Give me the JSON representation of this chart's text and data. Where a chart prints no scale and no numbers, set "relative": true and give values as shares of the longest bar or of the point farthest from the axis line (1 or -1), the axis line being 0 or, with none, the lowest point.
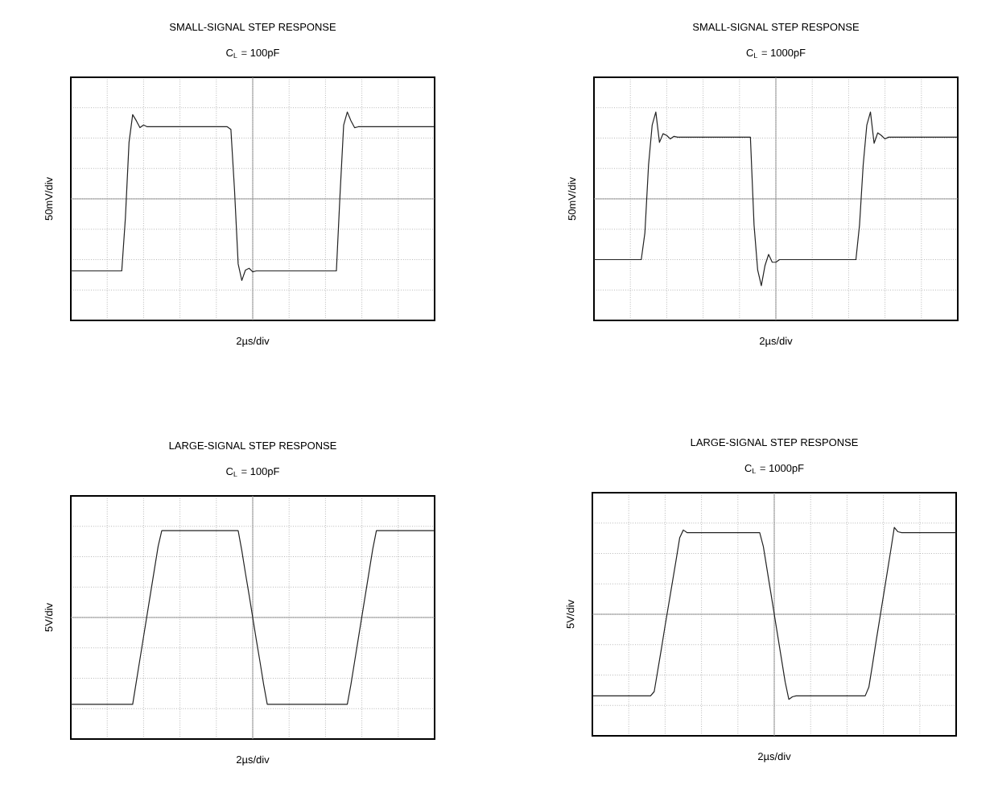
{
  "chart_data": [
    {
      "type": "line",
      "title": "SMALL-SIGNAL STEP RESPONSE",
      "subtitle": "C$_{L}$ = 100pF",
      "xlabel": "2µs/div",
      "ylabel": "50mV/div",
      "relative": true,
      "grid": true,
      "tick_labels": false,
      "color": "#222222",
      "categories": [
        null,
        null,
        null,
        null,
        null,
        null,
        null,
        null,
        null,
        null,
        null,
        null,
        null,
        null,
        null,
        null,
        null,
        null,
        null,
        null,
        null,
        null,
        null,
        null,
        null,
        null,
        null,
        null,
        null,
        null,
        null,
        null,
        null,
        null,
        null,
        null,
        null,
        null,
        null,
        null,
        null,
        null,
        null,
        null,
        null,
        null,
        null,
        null,
        null,
        null,
        null,
        null,
        null,
        null,
        null,
        null,
        null,
        null,
        null,
        null,
        null,
        null,
        null,
        null,
        null,
        null,
        null,
        null,
        null,
        null,
        null,
        null,
        null,
        null,
        null,
        null,
        null,
        null,
        null,
        null,
        null,
        null,
        null,
        null,
        null,
        null,
        null,
        null,
        null,
        null,
        null,
        null,
        null,
        null,
        null,
        null,
        null,
        null,
        null,
        null,
        null
      ],
      "values": [
        -0.83,
        -0.83,
        -0.83,
        -0.83,
        -0.83,
        -0.83,
        -0.83,
        -0.83,
        -0.83,
        -0.83,
        -0.83,
        -0.83,
        -0.83,
        -0.83,
        -0.83,
        -0.22,
        0.65,
        0.97,
        0.9,
        0.82,
        0.85,
        0.83,
        0.83,
        0.83,
        0.83,
        0.83,
        0.83,
        0.83,
        0.83,
        0.83,
        0.83,
        0.83,
        0.83,
        0.83,
        0.83,
        0.83,
        0.83,
        0.83,
        0.83,
        0.83,
        0.83,
        0.83,
        0.83,
        0.83,
        0.8,
        0.1,
        -0.75,
        -0.94,
        -0.82,
        -0.8,
        -0.84,
        -0.83,
        -0.83,
        -0.83,
        -0.83,
        -0.83,
        -0.83,
        -0.83,
        -0.83,
        -0.83,
        -0.83,
        -0.83,
        -0.83,
        -0.83,
        -0.83,
        -0.83,
        -0.83,
        -0.83,
        -0.83,
        -0.83,
        -0.83,
        -0.83,
        -0.83,
        -0.83,
        0.05,
        0.85,
        1,
        0.9,
        0.82,
        0.83,
        0.83,
        0.83,
        0.83,
        0.83,
        0.83,
        0.83,
        0.83,
        0.83,
        0.83,
        0.83,
        0.83,
        0.83,
        0.83,
        0.83,
        0.83,
        0.83,
        0.83,
        0.83,
        0.83,
        0.83,
        0.83
      ]
    },
    {
      "type": "line",
      "title": "SMALL-SIGNAL STEP RESPONSE",
      "subtitle": "C$_{L}$ = 1000pF",
      "xlabel": "2µs/div",
      "ylabel": "50mV/div",
      "relative": true,
      "grid": true,
      "tick_labels": false,
      "color": "#222222",
      "categories": [
        null,
        null,
        null,
        null,
        null,
        null,
        null,
        null,
        null,
        null,
        null,
        null,
        null,
        null,
        null,
        null,
        null,
        null,
        null,
        null,
        null,
        null,
        null,
        null,
        null,
        null,
        null,
        null,
        null,
        null,
        null,
        null,
        null,
        null,
        null,
        null,
        null,
        null,
        null,
        null,
        null,
        null,
        null,
        null,
        null,
        null,
        null,
        null,
        null,
        null,
        null,
        null,
        null,
        null,
        null,
        null,
        null,
        null,
        null,
        null,
        null,
        null,
        null,
        null,
        null,
        null,
        null,
        null,
        null,
        null,
        null,
        null,
        null,
        null,
        null,
        null,
        null,
        null,
        null,
        null,
        null,
        null,
        null,
        null,
        null,
        null,
        null,
        null,
        null,
        null,
        null,
        null,
        null,
        null,
        null,
        null,
        null,
        null,
        null,
        null,
        null
      ],
      "values": [
        -0.7,
        -0.7,
        -0.7,
        -0.7,
        -0.7,
        -0.7,
        -0.7,
        -0.7,
        -0.7,
        -0.7,
        -0.7,
        -0.7,
        -0.7,
        -0.7,
        -0.39,
        0.39,
        0.85,
        1,
        0.65,
        0.75,
        0.73,
        0.69,
        0.72,
        0.71,
        0.71,
        0.71,
        0.71,
        0.71,
        0.71,
        0.71,
        0.71,
        0.71,
        0.71,
        0.71,
        0.71,
        0.71,
        0.71,
        0.71,
        0.71,
        0.71,
        0.71,
        0.71,
        0.71,
        0.71,
        -0.3,
        -0.82,
        -1,
        -0.77,
        -0.64,
        -0.73,
        -0.73,
        -0.7,
        -0.7,
        -0.7,
        -0.7,
        -0.7,
        -0.7,
        -0.7,
        -0.7,
        -0.7,
        -0.7,
        -0.7,
        -0.7,
        -0.7,
        -0.7,
        -0.7,
        -0.7,
        -0.7,
        -0.7,
        -0.7,
        -0.7,
        -0.7,
        -0.7,
        -0.3,
        0.39,
        0.85,
        1,
        0.64,
        0.76,
        0.73,
        0.69,
        0.71,
        0.71,
        0.71,
        0.71,
        0.71,
        0.71,
        0.71,
        0.71,
        0.71,
        0.71,
        0.71,
        0.71,
        0.71,
        0.71,
        0.71,
        0.71,
        0.71,
        0.71,
        0.71,
        0.71
      ]
    },
    {
      "type": "line",
      "title": "LARGE-SIGNAL STEP RESPONSE",
      "subtitle": "C$_{L}$ = 100pF",
      "xlabel": "2µs/div",
      "ylabel": "5V/div",
      "relative": true,
      "grid": true,
      "tick_labels": false,
      "color": "#222222",
      "categories": [
        null,
        null,
        null,
        null,
        null,
        null,
        null,
        null,
        null,
        null,
        null,
        null,
        null,
        null,
        null,
        null,
        null,
        null,
        null,
        null,
        null,
        null,
        null,
        null,
        null,
        null,
        null,
        null,
        null,
        null,
        null,
        null,
        null,
        null,
        null,
        null,
        null,
        null,
        null,
        null,
        null,
        null,
        null,
        null,
        null,
        null,
        null,
        null,
        null,
        null,
        null,
        null,
        null,
        null,
        null,
        null,
        null,
        null,
        null,
        null,
        null,
        null,
        null,
        null,
        null,
        null,
        null,
        null,
        null,
        null,
        null,
        null,
        null,
        null,
        null,
        null,
        null,
        null,
        null,
        null,
        null,
        null,
        null,
        null,
        null,
        null,
        null,
        null,
        null,
        null,
        null,
        null,
        null,
        null,
        null,
        null,
        null,
        null,
        null,
        null,
        null
      ],
      "values": [
        -1,
        -1,
        -1,
        -1,
        -1,
        -1,
        -1,
        -1,
        -1,
        -1,
        -1,
        -1,
        -1,
        -1,
        -1,
        -1,
        -1,
        -1,
        -0.74,
        -0.48,
        -0.22,
        0.04,
        0.3,
        0.56,
        0.82,
        1,
        1,
        1,
        1,
        1,
        1,
        1,
        1,
        1,
        1,
        1,
        1,
        1,
        1,
        1,
        1,
        1,
        1,
        1,
        1,
        1,
        1,
        0.77,
        0.51,
        0.26,
        0,
        -0.26,
        -0.51,
        -0.77,
        -1,
        -1,
        -1,
        -1,
        -1,
        -1,
        -1,
        -1,
        -1,
        -1,
        -1,
        -1,
        -1,
        -1,
        -1,
        -1,
        -1,
        -1,
        -1,
        -1,
        -1,
        -1,
        -1,
        -0.77,
        -0.51,
        -0.25,
        0.01,
        0.27,
        0.53,
        0.79,
        1,
        1,
        1,
        1,
        1,
        1,
        1,
        1,
        1,
        1,
        1,
        1,
        1,
        1,
        1,
        1,
        1
      ]
    },
    {
      "type": "line",
      "title": "LARGE-SIGNAL STEP RESPONSE",
      "subtitle": "C$_{L}$ = 1000pF",
      "xlabel": "2µs/div",
      "ylabel": "5V/div",
      "relative": true,
      "grid": true,
      "tick_labels": false,
      "color": "#222222",
      "categories": [
        null,
        null,
        null,
        null,
        null,
        null,
        null,
        null,
        null,
        null,
        null,
        null,
        null,
        null,
        null,
        null,
        null,
        null,
        null,
        null,
        null,
        null,
        null,
        null,
        null,
        null,
        null,
        null,
        null,
        null,
        null,
        null,
        null,
        null,
        null,
        null,
        null,
        null,
        null,
        null,
        null,
        null,
        null,
        null,
        null,
        null,
        null,
        null,
        null,
        null,
        null,
        null,
        null,
        null,
        null,
        null,
        null,
        null,
        null,
        null,
        null,
        null,
        null,
        null,
        null,
        null,
        null,
        null,
        null,
        null,
        null,
        null,
        null,
        null,
        null,
        null,
        null,
        null,
        null,
        null,
        null,
        null,
        null,
        null,
        null,
        null,
        null,
        null,
        null,
        null,
        null,
        null,
        null,
        null,
        null,
        null,
        null,
        null,
        null,
        null,
        null
      ],
      "values": [
        -0.94,
        -0.94,
        -0.94,
        -0.94,
        -0.94,
        -0.94,
        -0.94,
        -0.94,
        -0.94,
        -0.94,
        -0.94,
        -0.94,
        -0.94,
        -0.94,
        -0.94,
        -0.94,
        -0.94,
        -0.89,
        -0.64,
        -0.39,
        -0.13,
        0.12,
        0.37,
        0.62,
        0.88,
        0.97,
        0.94,
        0.94,
        0.94,
        0.94,
        0.94,
        0.94,
        0.94,
        0.94,
        0.94,
        0.94,
        0.94,
        0.94,
        0.94,
        0.94,
        0.94,
        0.94,
        0.94,
        0.94,
        0.94,
        0.94,
        0.94,
        0.78,
        0.52,
        0.26,
        0,
        -0.26,
        -0.52,
        -0.78,
        -0.98,
        -0.95,
        -0.94,
        -0.94,
        -0.94,
        -0.94,
        -0.94,
        -0.94,
        -0.94,
        -0.94,
        -0.94,
        -0.94,
        -0.94,
        -0.94,
        -0.94,
        -0.94,
        -0.94,
        -0.94,
        -0.94,
        -0.94,
        -0.94,
        -0.94,
        -0.84,
        -0.58,
        -0.31,
        -0.05,
        0.21,
        0.47,
        0.73,
        1,
        0.95,
        0.94,
        0.94,
        0.94,
        0.94,
        0.94,
        0.94,
        0.94,
        0.94,
        0.94,
        0.94,
        0.94,
        0.94,
        0.94,
        0.94,
        0.94,
        0.94
      ]
    }
  ]
}
